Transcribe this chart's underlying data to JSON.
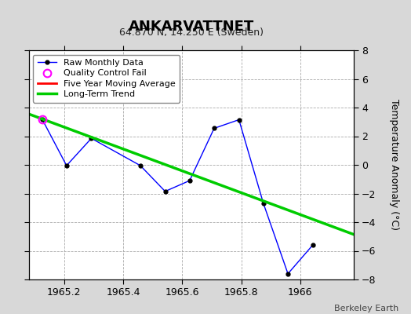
{
  "title": "ANKARVATTNET",
  "subtitle": "64.870 N, 14.250 E (Sweden)",
  "ylabel": "Temperature Anomaly (°C)",
  "credit": "Berkeley Earth",
  "ylim": [
    -8,
    8
  ],
  "xlim": [
    1965.08,
    1966.18
  ],
  "xticks": [
    1965.2,
    1965.4,
    1965.6,
    1965.8,
    1966.0
  ],
  "xticklabels": [
    "1965.2",
    "1965.4",
    "1965.6",
    "1965.8",
    "1966"
  ],
  "yticks": [
    -8,
    -6,
    -4,
    -2,
    0,
    2,
    4,
    6,
    8
  ],
  "raw_x": [
    1965.125,
    1965.208,
    1965.292,
    1965.458,
    1965.542,
    1965.625,
    1965.708,
    1965.792,
    1965.875,
    1965.958,
    1966.042
  ],
  "raw_y": [
    3.2,
    -0.05,
    1.85,
    -0.05,
    -1.85,
    -1.1,
    2.55,
    3.15,
    -2.7,
    -7.6,
    -5.6
  ],
  "qc_fail_x": [
    1965.125
  ],
  "qc_fail_y": [
    3.2
  ],
  "trend_x": [
    1965.08,
    1966.18
  ],
  "trend_y": [
    3.55,
    -4.85
  ],
  "raw_color": "#0000ff",
  "raw_marker_color": "#000000",
  "trend_color": "#00cc00",
  "moving_avg_color": "#ff0000",
  "qc_fail_color": "#ff00ff",
  "bg_color": "#d8d8d8",
  "plot_bg_color": "#ffffff",
  "grid_color": "#aaaaaa",
  "title_fontsize": 13,
  "subtitle_fontsize": 9,
  "tick_fontsize": 9,
  "ylabel_fontsize": 9,
  "credit_fontsize": 8
}
